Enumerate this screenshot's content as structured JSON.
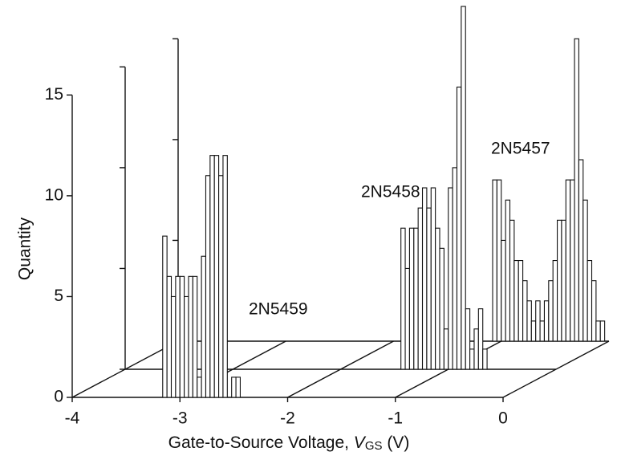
{
  "chart_data": {
    "type": "histogram",
    "xlabel": {
      "text": "Gate-to-Source Voltage, ",
      "symbol": "V",
      "subscript": "GS",
      "unit": " (V)"
    },
    "ylabel": "Quantity",
    "xlim": [
      -4,
      0
    ],
    "xticks": [
      -4,
      -3,
      -2,
      -1,
      0
    ],
    "ylim": [
      0,
      18
    ],
    "yticks": [
      0,
      5,
      10,
      15
    ],
    "series": [
      {
        "name": "2N5459",
        "color": "#ffffff",
        "bins": [
          -3.16,
          -3.12,
          -3.08,
          -3.04,
          -3.0,
          -2.96,
          -2.92,
          -2.88,
          -2.84,
          -2.8,
          -2.76,
          -2.72,
          -2.68,
          -2.64,
          -2.6,
          -2.56,
          -2.52,
          -2.48,
          -2.44
        ],
        "values": [
          8,
          6,
          5,
          6,
          6,
          5,
          6,
          6,
          1,
          7,
          11,
          12,
          12,
          11,
          12,
          0,
          1,
          1
        ]
      },
      {
        "name": "2N5458",
        "color": "#ffffff",
        "bins": [
          -1.44,
          -1.4,
          -1.36,
          -1.32,
          -1.28,
          -1.24,
          -1.2,
          -1.16,
          -1.12,
          -1.08,
          -1.04,
          -1.0,
          -0.96,
          -0.92,
          -0.88,
          -0.84,
          -0.8,
          -0.76,
          -0.72,
          -0.68,
          -0.64
        ],
        "values": [
          7,
          5,
          7,
          7,
          8,
          9,
          8,
          9,
          7,
          6,
          2,
          9,
          10,
          14,
          18,
          3,
          1,
          2,
          3,
          1
        ]
      },
      {
        "name": "2N5457",
        "color": "#ffffff",
        "bins": [
          -1.08,
          -1.04,
          -1.0,
          -0.96,
          -0.92,
          -0.88,
          -0.84,
          -0.8,
          -0.76,
          -0.72,
          -0.68,
          -0.64,
          -0.6,
          -0.56,
          -0.52,
          -0.48,
          -0.44,
          -0.4,
          -0.36,
          -0.32,
          -0.28,
          -0.24,
          -0.2,
          -0.16,
          -0.12,
          -0.08,
          -0.04
        ],
        "values": [
          8,
          8,
          5,
          7,
          6,
          4,
          4,
          3,
          2,
          1,
          2,
          1,
          2,
          3,
          4,
          6,
          6,
          8,
          8,
          15,
          9,
          7,
          4,
          3,
          1,
          1
        ]
      }
    ]
  }
}
